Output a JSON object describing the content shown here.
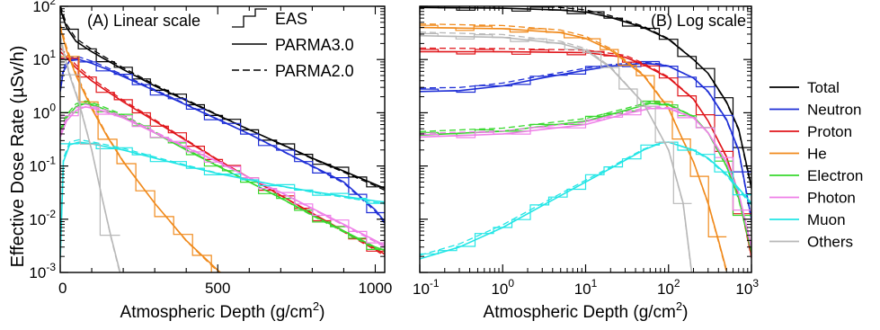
{
  "figure": {
    "ylabel": "Effective Dose Rate (µSv/h)",
    "xlabel": "Atmospheric Depth (g/cm",
    "xlabel_sup": "2",
    "xlabel_close": ")"
  },
  "style_legend": [
    {
      "name": "EAS",
      "style": "step"
    },
    {
      "name": "PARMA3.0",
      "style": "solid"
    },
    {
      "name": "PARMA2.0",
      "style": "dashed"
    }
  ],
  "color_legend": [
    {
      "name": "Total",
      "color": "#000000"
    },
    {
      "name": "Neutron",
      "color": "#1f2fd6"
    },
    {
      "name": "Proton",
      "color": "#e0161b"
    },
    {
      "name": "He",
      "color": "#f08a1c"
    },
    {
      "name": "Electron",
      "color": "#38d82e"
    },
    {
      "name": "Photon",
      "color": "#ef7fe8"
    },
    {
      "name": "Muon",
      "color": "#22e5e5"
    },
    {
      "name": "Others",
      "color": "#b8b8b8"
    }
  ],
  "chart_data": [
    {
      "type": "line",
      "title": "(A) Linear scale",
      "x_scale": "linear",
      "y_scale": "log",
      "xlim": [
        0,
        1030
      ],
      "ylim": [
        0.001,
        100
      ],
      "x_ticks": [
        0,
        500,
        1000
      ],
      "x_tick_labels": [
        "0",
        "500",
        "1000"
      ],
      "y_ticks": [
        0.001,
        0.01,
        0.1,
        1,
        10,
        100
      ],
      "y_tick_labels": [
        [
          "10",
          "-3"
        ],
        [
          "10",
          "-2"
        ],
        [
          "10",
          "-1"
        ],
        [
          "10",
          "0"
        ],
        [
          "10",
          "1"
        ],
        [
          "10",
          "2"
        ]
      ],
      "xlabel": "Atmospheric Depth (g/cm2)",
      "ylabel": "Effective Dose Rate (µSv/h)",
      "series": [
        {
          "name": "Total",
          "x": [
            0,
            20,
            50,
            100,
            150,
            200,
            300,
            400,
            500,
            600,
            700,
            800,
            900,
            1000,
            1030
          ],
          "y": [
            90,
            40,
            22,
            14,
            9.5,
            6.5,
            3.2,
            1.7,
            0.9,
            0.48,
            0.26,
            0.14,
            0.08,
            0.045,
            0.038
          ]
        },
        {
          "name": "Neutron",
          "x": [
            0,
            10,
            30,
            60,
            100,
            150,
            200,
            300,
            400,
            500,
            600,
            700,
            800,
            900,
            1000,
            1030
          ],
          "y": [
            2.5,
            6,
            9.5,
            10,
            8.5,
            6.5,
            4.8,
            2.6,
            1.4,
            0.75,
            0.4,
            0.2,
            0.1,
            0.05,
            0.015,
            0.009
          ]
        },
        {
          "name": "Proton",
          "x": [
            0,
            20,
            50,
            100,
            150,
            200,
            300,
            400,
            500,
            600,
            700,
            800,
            900,
            1000,
            1030
          ],
          "y": [
            14,
            11,
            7,
            4,
            2.5,
            1.6,
            0.7,
            0.3,
            0.13,
            0.06,
            0.028,
            0.013,
            0.006,
            0.0028,
            0.0022
          ]
        },
        {
          "name": "He",
          "x": [
            0,
            20,
            50,
            100,
            150,
            200,
            300,
            400,
            500,
            540
          ],
          "y": [
            40,
            15,
            5,
            1.2,
            0.35,
            0.12,
            0.02,
            0.004,
            0.0011,
            0.0007
          ]
        },
        {
          "name": "Electron",
          "x": [
            0,
            20,
            50,
            80,
            120,
            200,
            300,
            400,
            500,
            600,
            700,
            800,
            900,
            1000,
            1030
          ],
          "y": [
            0.4,
            0.8,
            1.3,
            1.5,
            1.3,
            0.85,
            0.42,
            0.2,
            0.1,
            0.05,
            0.025,
            0.012,
            0.006,
            0.003,
            0.0026
          ]
        },
        {
          "name": "Photon",
          "x": [
            0,
            20,
            50,
            80,
            120,
            200,
            300,
            400,
            500,
            600,
            700,
            800,
            900,
            1000,
            1030
          ],
          "y": [
            0.35,
            0.7,
            1.1,
            1.3,
            1.15,
            0.8,
            0.42,
            0.22,
            0.12,
            0.06,
            0.032,
            0.016,
            0.008,
            0.004,
            0.0032
          ]
        },
        {
          "name": "Muon",
          "x": [
            0,
            10,
            30,
            60,
            100,
            200,
            300,
            400,
            500,
            600,
            700,
            800,
            900,
            1000,
            1030
          ],
          "y": [
            0.0018,
            0.12,
            0.25,
            0.28,
            0.26,
            0.2,
            0.14,
            0.1,
            0.072,
            0.055,
            0.042,
            0.033,
            0.027,
            0.022,
            0.021
          ]
        },
        {
          "name": "Others",
          "x": [
            0,
            10,
            30,
            60,
            100,
            130,
            160,
            190
          ],
          "y": [
            25,
            14,
            5,
            1.5,
            0.2,
            0.03,
            0.005,
            0.001
          ]
        }
      ]
    },
    {
      "type": "line",
      "title": "(B) Log scale",
      "x_scale": "log",
      "y_scale": "log",
      "xlim": [
        0.1,
        1000
      ],
      "ylim": [
        0.001,
        100
      ],
      "x_ticks": [
        0.1,
        1,
        10,
        100,
        1000
      ],
      "x_tick_labels": [
        [
          "10",
          "-1"
        ],
        [
          "10",
          "0"
        ],
        [
          "10",
          "1"
        ],
        [
          "10",
          "2"
        ],
        [
          "10",
          "3"
        ]
      ],
      "y_ticks": [
        0.001,
        0.01,
        0.1,
        1,
        10,
        100
      ],
      "y_tick_labels": [
        [
          "10",
          "-3"
        ],
        [
          "10",
          "-2"
        ],
        [
          "10",
          "-1"
        ],
        [
          "10",
          "0"
        ],
        [
          "10",
          "1"
        ],
        [
          "10",
          "2"
        ]
      ],
      "xlabel": "Atmospheric Depth (g/cm2)",
      "series": [
        {
          "name": "Total",
          "x": [
            0.1,
            1,
            5,
            10,
            20,
            50,
            100,
            200,
            300,
            500,
            700,
            1000
          ],
          "y": [
            95,
            92,
            85,
            78,
            62,
            40,
            24,
            10,
            5.5,
            1.6,
            0.5,
            0.04
          ]
        },
        {
          "name": "Neutron",
          "x": [
            0.1,
            0.3,
            1,
            3,
            10,
            20,
            50,
            80,
            100,
            200,
            300,
            500,
            700,
            1000
          ],
          "y": [
            2.5,
            2.6,
            3.2,
            4.5,
            6.3,
            7.5,
            8.5,
            8,
            7.5,
            4.5,
            2.5,
            0.75,
            0.2,
            0.01
          ]
        },
        {
          "name": "Proton",
          "x": [
            0.1,
            1,
            10,
            30,
            50,
            100,
            200,
            300,
            500,
            700,
            1000
          ],
          "y": [
            14,
            14,
            13.5,
            11,
            8,
            4.5,
            1.8,
            0.7,
            0.15,
            0.03,
            0.002
          ]
        },
        {
          "name": "He",
          "x": [
            0.1,
            1,
            5,
            10,
            20,
            50,
            100,
            150,
            200,
            300,
            400,
            500
          ],
          "y": [
            40,
            38,
            32,
            25,
            15,
            5,
            1.2,
            0.3,
            0.12,
            0.02,
            0.004,
            0.0011
          ]
        },
        {
          "name": "Electron",
          "x": [
            0.1,
            1,
            10,
            30,
            60,
            100,
            200,
            300,
            500,
            700,
            1000
          ],
          "y": [
            0.38,
            0.45,
            0.7,
            1.1,
            1.5,
            1.4,
            0.85,
            0.42,
            0.1,
            0.025,
            0.0025
          ]
        },
        {
          "name": "Photon",
          "x": [
            0.1,
            1,
            10,
            30,
            60,
            100,
            200,
            300,
            500,
            700,
            1000
          ],
          "y": [
            0.35,
            0.4,
            0.6,
            0.95,
            1.2,
            1.2,
            0.8,
            0.42,
            0.12,
            0.032,
            0.003
          ]
        },
        {
          "name": "Muon",
          "x": [
            0.1,
            0.3,
            1,
            3,
            10,
            20,
            50,
            80,
            100,
            200,
            300,
            500,
            1000
          ],
          "y": [
            0.0018,
            0.003,
            0.007,
            0.018,
            0.05,
            0.09,
            0.2,
            0.27,
            0.28,
            0.2,
            0.14,
            0.07,
            0.02
          ]
        },
        {
          "name": "Others",
          "x": [
            0.1,
            1,
            5,
            10,
            20,
            50,
            100,
            150,
            190
          ],
          "y": [
            28,
            26,
            20,
            15,
            7,
            1.5,
            0.2,
            0.02,
            0.001
          ]
        }
      ]
    }
  ]
}
